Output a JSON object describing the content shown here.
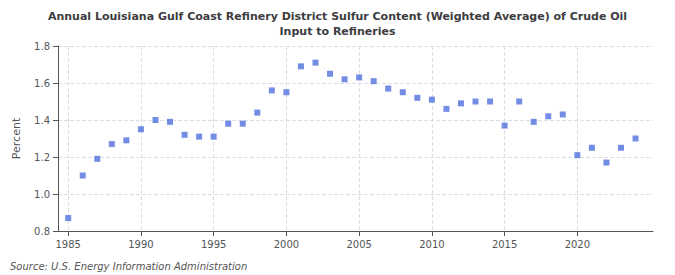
{
  "chart_data": {
    "type": "scatter",
    "title": "Annual Louisiana Gulf Coast Refinery District Sulfur Content (Weighted Average) of Crude Oil\nInput to Refineries",
    "ylabel": "Percent",
    "annotations": [
      "Source: U.S. Energy Information Administration"
    ],
    "x": [
      1985,
      1986,
      1987,
      1988,
      1989,
      1990,
      1991,
      1992,
      1993,
      1994,
      1995,
      1996,
      1997,
      1998,
      1999,
      2000,
      2001,
      2002,
      2003,
      2004,
      2005,
      2006,
      2007,
      2008,
      2009,
      2010,
      2011,
      2012,
      2013,
      2014,
      2015,
      2016,
      2017,
      2018,
      2019,
      2020,
      2021,
      2022,
      2023,
      2024
    ],
    "values": [
      0.87,
      1.1,
      1.19,
      1.27,
      1.29,
      1.35,
      1.4,
      1.39,
      1.32,
      1.31,
      1.31,
      1.38,
      1.38,
      1.44,
      1.56,
      1.55,
      1.69,
      1.71,
      1.65,
      1.62,
      1.63,
      1.61,
      1.57,
      1.55,
      1.52,
      1.51,
      1.46,
      1.49,
      1.5,
      1.5,
      1.37,
      1.5,
      1.39,
      1.42,
      1.43,
      1.21,
      1.25,
      1.17,
      1.25,
      1.3
    ],
    "marker": "square",
    "xlim": [
      1984.3,
      2025.2
    ],
    "xticks": [
      1985,
      1990,
      1995,
      2000,
      2005,
      2010,
      2015,
      2020
    ],
    "ylim": [
      0.8,
      1.8
    ],
    "yticks": [
      0.8,
      {
        "value": 1.0,
        "label": "1.0"
      },
      1.2,
      1.4,
      1.6,
      1.8
    ],
    "grid": true
  }
}
